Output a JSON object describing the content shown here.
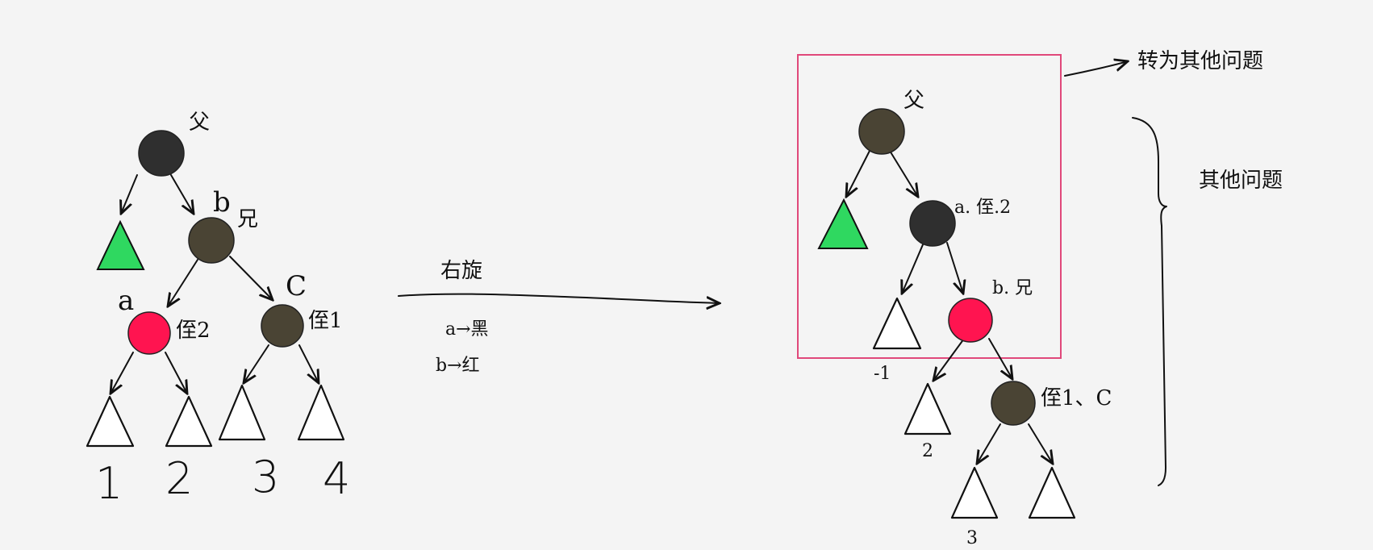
{
  "colors": {
    "black_node": "#2f2f2f",
    "brown_node": "#4a4434",
    "red_node": "#ff1450",
    "green_node": "#2fd860",
    "box": "#e0487a"
  },
  "left_tree": {
    "label_parent": "父",
    "label_b": "b",
    "label_brother": "兄",
    "label_a": "a",
    "label_nephew2": "侄2",
    "label_c": "C",
    "label_nephew1": "侄1",
    "leaf_1": "1",
    "leaf_2": "2",
    "leaf_3": "3",
    "leaf_4": "4"
  },
  "transform": {
    "label": "右旋",
    "step_1": "a→黑",
    "step_2": "b→红"
  },
  "right_tree": {
    "label_parent": "父",
    "label_a": "a. 侄.2",
    "label_b": "b. 兄",
    "label_c": "侄1、C",
    "leaf_minus1": "-1",
    "leaf_2": "2",
    "leaf_3": "3"
  },
  "annotations": {
    "box_note": "转为其他问题",
    "brace_note": "其他问题"
  }
}
